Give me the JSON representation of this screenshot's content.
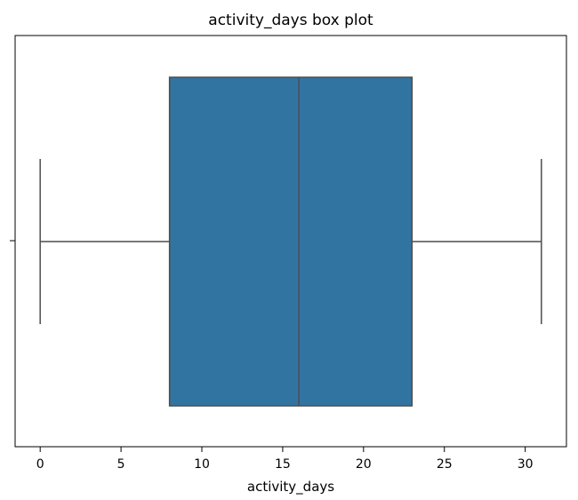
{
  "chart_data": {
    "type": "box",
    "title": "activity_days box plot",
    "xlabel": "activity_days",
    "ylabel": "",
    "orientation": "horizontal",
    "xlim": [
      -1.55,
      32.55
    ],
    "xticks": [
      0,
      5,
      10,
      15,
      20,
      25,
      30
    ],
    "xtick_labels": [
      "0",
      "5",
      "10",
      "15",
      "20",
      "25",
      "30"
    ],
    "grid": false,
    "series": [
      {
        "min": 0,
        "q1": 8,
        "median": 16,
        "q3": 23,
        "max": 31,
        "color": "#3274a1"
      }
    ]
  }
}
